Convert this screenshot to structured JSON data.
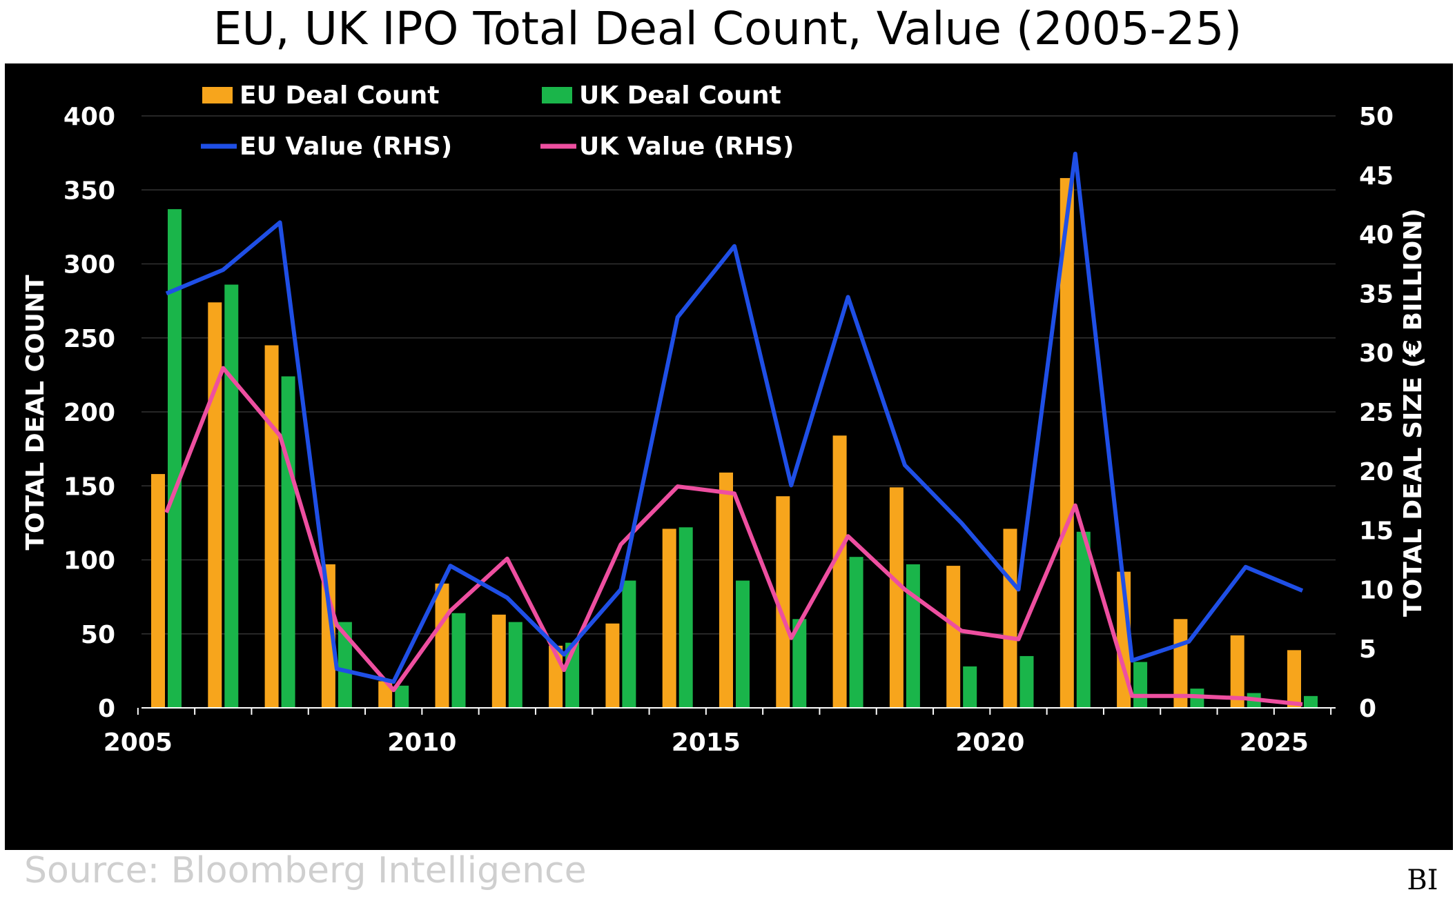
{
  "title": "EU, UK IPO Total Deal Count, Value (2005-25)",
  "source": "Source: Bloomberg Intelligence",
  "brand": {
    "line1": "Bloomberg",
    "line2": "Intelligence",
    "badge": "BI"
  },
  "colors": {
    "background": "#000000",
    "eu_count": "#f7a51c",
    "uk_count": "#1ab54a",
    "eu_value": "#1f4fe6",
    "uk_value": "#ee4fa0",
    "grid": "#333333"
  },
  "chart_data": {
    "type": "bar",
    "title": "EU, UK IPO Total Deal Count, Value (2005-25)",
    "categories": [
      2005,
      2006,
      2007,
      2008,
      2009,
      2010,
      2011,
      2012,
      2013,
      2014,
      2015,
      2016,
      2017,
      2018,
      2019,
      2020,
      2021,
      2022,
      2023,
      2024,
      2025
    ],
    "x_ticks": [
      "2005",
      "2010",
      "2015",
      "2020",
      "2025"
    ],
    "ylabel": "TOTAL DEAL COUNT",
    "y2label": "TOTAL DEAL SIZE (€ BILLION)",
    "ylim": [
      0,
      400
    ],
    "y2lim": [
      0,
      50
    ],
    "y_ticks": [
      "0",
      "50",
      "100",
      "150",
      "200",
      "250",
      "300",
      "350",
      "400"
    ],
    "y2_ticks": [
      "0",
      "5",
      "10",
      "15",
      "20",
      "25",
      "30",
      "35",
      "40",
      "45",
      "50"
    ],
    "grid": true,
    "legend_position": "top-left",
    "series": [
      {
        "name": "EU Deal Count",
        "type": "bar",
        "axis": "left",
        "values": [
          158,
          274,
          245,
          97,
          18,
          84,
          63,
          42,
          57,
          121,
          159,
          143,
          184,
          149,
          96,
          121,
          358,
          92,
          60,
          49,
          39
        ]
      },
      {
        "name": "UK Deal Count",
        "type": "bar",
        "axis": "left",
        "values": [
          337,
          286,
          224,
          58,
          15,
          64,
          58,
          44,
          86,
          122,
          86,
          60,
          102,
          97,
          28,
          35,
          119,
          31,
          13,
          10,
          8
        ]
      },
      {
        "name": "EU Value (RHS)",
        "type": "line",
        "axis": "right",
        "values": [
          35,
          37,
          41,
          3.3,
          2.2,
          12,
          9.3,
          4.5,
          10,
          33,
          39,
          18.8,
          34.7,
          20.5,
          15.6,
          10,
          46.8,
          4,
          5.6,
          11.9,
          9.9
        ]
      },
      {
        "name": "UK Value (RHS)",
        "type": "line",
        "axis": "right",
        "values": [
          16.5,
          28.7,
          23,
          7,
          1.5,
          8.2,
          12.6,
          3.2,
          13.8,
          18.7,
          18.1,
          5.9,
          14.5,
          10,
          6.5,
          5.8,
          17.1,
          1,
          1,
          0.8,
          0.3
        ]
      }
    ]
  }
}
